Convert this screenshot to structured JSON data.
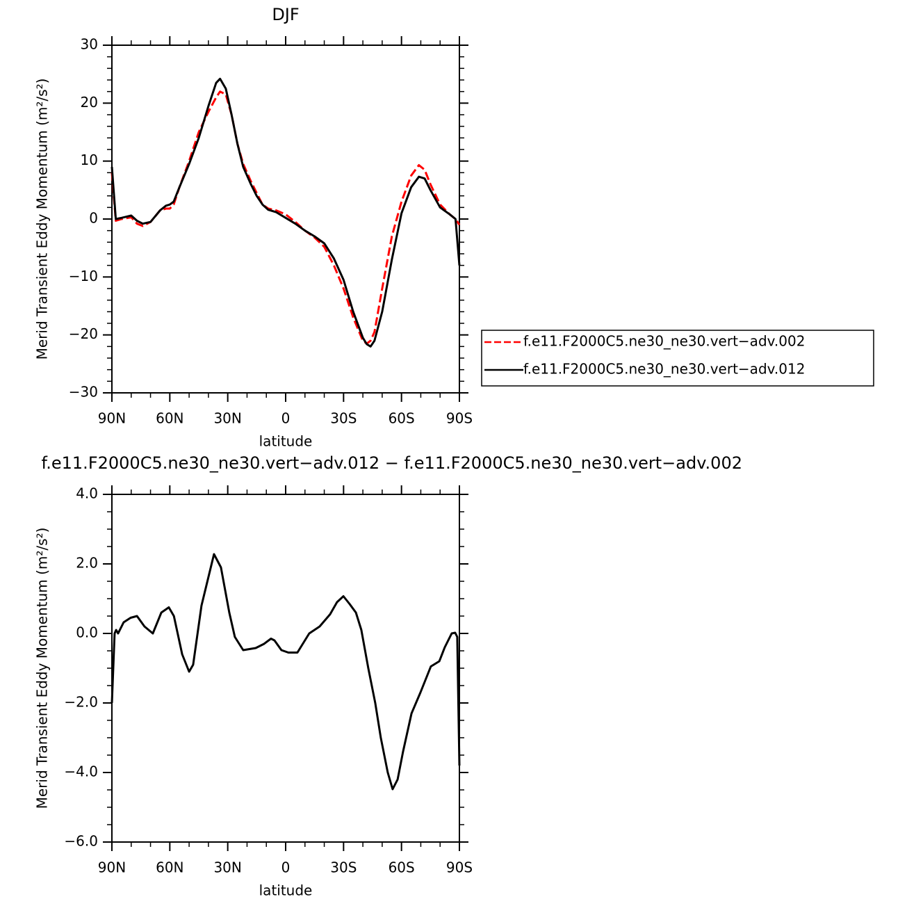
{
  "chart_data": [
    {
      "type": "line",
      "title": "DJF",
      "xlabel": "latitude",
      "ylabel": "Merid Transient Eddy Momentum (m²/s²)",
      "xlim": [
        90,
        -90
      ],
      "ylim": [
        -30,
        30
      ],
      "xticks": [
        {
          "value": 90,
          "label": "90N"
        },
        {
          "value": 60,
          "label": "60N"
        },
        {
          "value": 30,
          "label": "30N"
        },
        0,
        {
          "value": -30,
          "label": "30S"
        },
        {
          "value": -60,
          "label": "60S"
        },
        {
          "value": -90,
          "label": "90S"
        }
      ],
      "yticks": [
        {
          "value": -30,
          "label": "−30"
        },
        {
          "value": -20,
          "label": "−20"
        },
        {
          "value": -10,
          "label": "−10"
        },
        0,
        10,
        20,
        30
      ],
      "legend": "outside-right",
      "x": [
        90,
        88,
        85,
        80,
        77,
        74,
        70,
        65,
        62,
        60,
        58,
        55,
        50,
        45,
        40,
        36,
        34,
        31,
        28,
        25,
        22,
        18,
        15,
        12,
        9,
        5,
        0,
        -5,
        -10,
        -15,
        -20,
        -25,
        -30,
        -35,
        -40,
        -42,
        -44,
        -46,
        -50,
        -55,
        -60,
        -65,
        -69,
        -72,
        -75,
        -80,
        -85,
        -88,
        -90
      ],
      "series": [
        {
          "name": "f.e11.F2000C5.ne30_ne30.vert−adv.002",
          "color": "#ff0000",
          "dash": true,
          "values": [
            8,
            -0.3,
            0,
            0.3,
            -0.8,
            -1.2,
            -0.5,
            1.5,
            1.8,
            1.8,
            2.5,
            5.5,
            10,
            15,
            18.5,
            21,
            22,
            21.5,
            18,
            13,
            9.5,
            6.5,
            4.5,
            2.5,
            1.8,
            1.5,
            0.8,
            -0.5,
            -2,
            -3.2,
            -4.8,
            -8,
            -12,
            -17,
            -21,
            -21.5,
            -21,
            -19.5,
            -12,
            -3,
            3,
            7.5,
            9.3,
            8.5,
            6,
            2.5,
            0.8,
            0,
            -1
          ]
        },
        {
          "name": "f.e11.F2000C5.ne30_ne30.vert−adv.012",
          "color": "#000000",
          "dash": false,
          "values": [
            9,
            0,
            0.2,
            0.6,
            -0.3,
            -0.8,
            -0.5,
            1.5,
            2.3,
            2.5,
            3,
            5.5,
            9.5,
            14,
            19.5,
            23.5,
            24.2,
            22.5,
            18,
            13,
            9,
            6,
            4,
            2.5,
            1.6,
            1.2,
            0.2,
            -0.8,
            -2,
            -3,
            -4.2,
            -6.8,
            -10.5,
            -16,
            -20.5,
            -21.6,
            -22,
            -21,
            -16,
            -7,
            1,
            5.5,
            7.3,
            7,
            5,
            2,
            0.8,
            0,
            -8
          ]
        }
      ]
    },
    {
      "type": "line",
      "title": "f.e11.F2000C5.ne30_ne30.vert−adv.012 − f.e11.F2000C5.ne30_ne30.vert−adv.002",
      "xlabel": "latitude",
      "ylabel": "Merid Transient Eddy Momentum (m²/s²)",
      "xlim": [
        90,
        -90
      ],
      "ylim": [
        -6,
        4
      ],
      "xticks": [
        {
          "value": 90,
          "label": "90N"
        },
        {
          "value": 60,
          "label": "60N"
        },
        {
          "value": 30,
          "label": "30N"
        },
        0,
        {
          "value": -30,
          "label": "30S"
        },
        {
          "value": -60,
          "label": "60S"
        },
        {
          "value": -90,
          "label": "90S"
        }
      ],
      "yticks": [
        {
          "value": -6,
          "label": "−6.0"
        },
        {
          "value": -4,
          "label": "−4.0"
        },
        {
          "value": -2,
          "label": "−2.0"
        },
        {
          "value": 0,
          "label": "0.0"
        },
        {
          "value": 2,
          "label": "2.0"
        },
        {
          "value": 4,
          "label": "4.0"
        }
      ],
      "x": [
        90,
        88.6,
        87.8,
        86.8,
        83.9,
        80.3,
        77,
        73.1,
        68.8,
        64.4,
        60.5,
        57.9,
        53.6,
        50,
        47.9,
        43.6,
        37.1,
        33.5,
        29.2,
        26.3,
        22,
        15.5,
        11.2,
        7.6,
        5.8,
        2.2,
        -1.4,
        -6.1,
        -12.2,
        -17.6,
        -23,
        -26.6,
        -29.9,
        -33.1,
        -36.4,
        -39.2,
        -42.8,
        -46.4,
        -49.3,
        -52.9,
        -55.4,
        -58,
        -60.8,
        -65.2,
        -69.8,
        -75.2,
        -79.6,
        -82.4,
        -86,
        -87.8,
        -88.9,
        -90
      ],
      "series": [
        {
          "color": "#000000",
          "values": [
            -2,
            0,
            0.1,
            0,
            0.32,
            0.45,
            0.5,
            0.2,
            0,
            0.6,
            0.75,
            0.5,
            -0.6,
            -1.1,
            -0.9,
            0.8,
            2.28,
            1.9,
            0.6,
            -0.1,
            -0.48,
            -0.42,
            -0.3,
            -0.15,
            -0.2,
            -0.48,
            -0.55,
            -0.55,
            0,
            0.2,
            0.55,
            0.9,
            1.07,
            0.85,
            0.6,
            0.1,
            -1,
            -2,
            -3,
            -4,
            -4.48,
            -4.2,
            -3.4,
            -2.3,
            -1.7,
            -0.95,
            -0.8,
            -0.4,
            0,
            0.02,
            -0.1,
            -3.8
          ]
        }
      ]
    }
  ]
}
